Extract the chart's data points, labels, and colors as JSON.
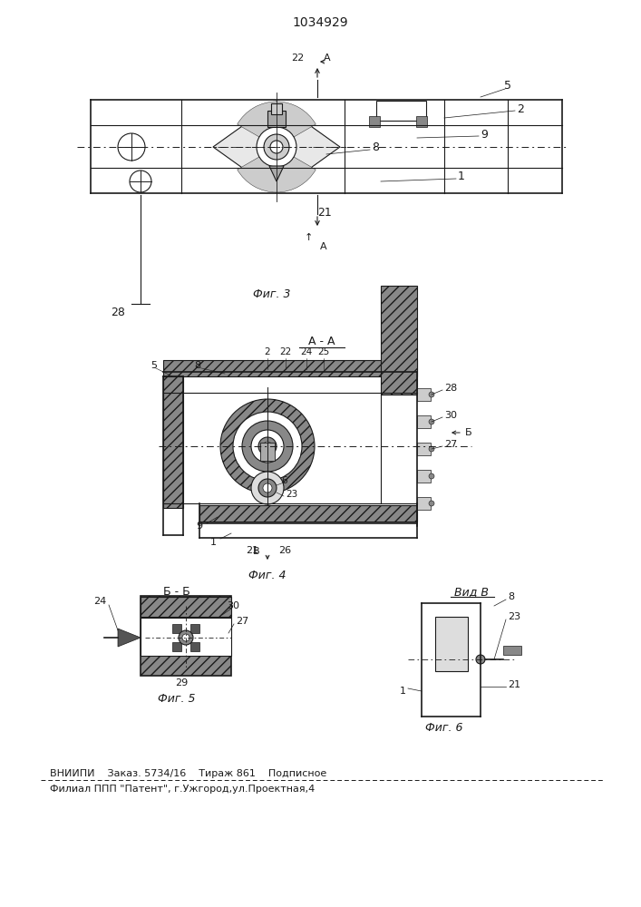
{
  "patent_number": "1034929",
  "background_color": "#ffffff",
  "line_color": "#1a1a1a",
  "fig_width": 7.07,
  "fig_height": 10.0,
  "footer_line1": "ВНИИПИ    Заказ. 5734/16    Тираж 861    Подписное",
  "footer_line2": "Филиал ППП \"Патент\", г.Ужгород,ул.Проектная,4",
  "fig3_label": "Фиг. 3",
  "fig4_label": "Фиг. 4",
  "fig5_label": "Фиг. 5",
  "fig6_label": "Фиг. 6",
  "section_aa_label": "А - А",
  "section_bb_label": "Б - Б",
  "view_b_label": "Вид В"
}
